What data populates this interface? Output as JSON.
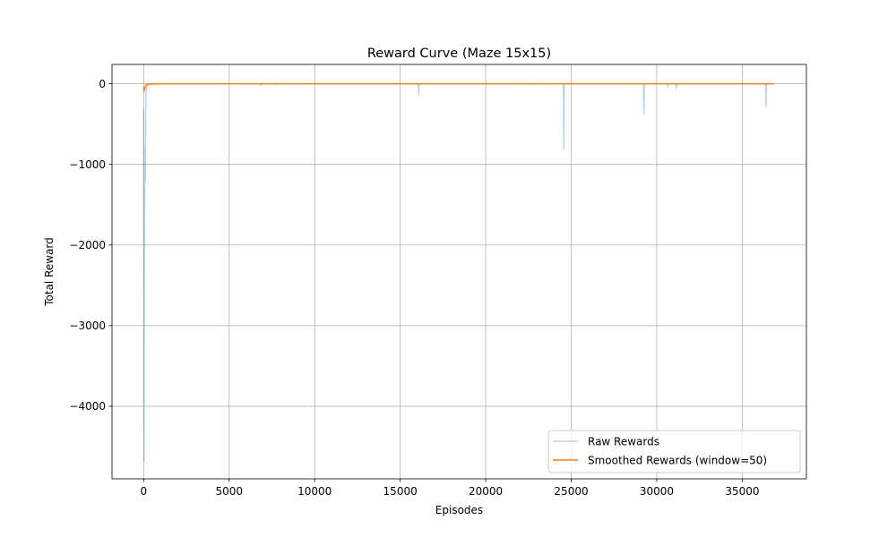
{
  "chart_data": {
    "type": "line",
    "title": "Reward Curve (Maze 15x15)",
    "xlabel": "Episodes",
    "ylabel": "Total Reward",
    "xlim": [
      -1850,
      38750
    ],
    "ylim": [
      -4900,
      240
    ],
    "xticks": [
      0,
      5000,
      10000,
      15000,
      20000,
      25000,
      30000,
      35000
    ],
    "xtick_labels": [
      "0",
      "5000",
      "10000",
      "15000",
      "20000",
      "25000",
      "30000",
      "35000"
    ],
    "yticks": [
      0,
      -1000,
      -2000,
      -3000,
      -4000
    ],
    "ytick_labels": [
      "0",
      "−1000",
      "−2000",
      "−3000",
      "−4000"
    ],
    "grid": true,
    "legend_position": "lower-right",
    "series": [
      {
        "name": "Raw Rewards",
        "color": "#1f77b4",
        "alpha": 0.3,
        "x": [
          0,
          20,
          40,
          60,
          80,
          100,
          120,
          140,
          160,
          200,
          400,
          1000,
          6820,
          6840,
          6860,
          7700,
          7720,
          7740,
          16050,
          16080,
          16110,
          22600,
          22620,
          22640,
          24540,
          24570,
          24600,
          29220,
          29250,
          29280,
          30620,
          30650,
          30680,
          31120,
          31150,
          31180,
          36360,
          36390,
          36420,
          36850
        ],
        "values": [
          -300,
          -4680,
          -2500,
          -1500,
          -800,
          -1220,
          -400,
          -150,
          -60,
          -20,
          -5,
          0,
          0,
          -20,
          0,
          0,
          -8,
          0,
          0,
          -140,
          0,
          0,
          -10,
          0,
          0,
          -810,
          0,
          0,
          -380,
          0,
          0,
          -40,
          0,
          0,
          -60,
          0,
          0,
          -280,
          0,
          0
        ]
      },
      {
        "name": "Smoothed Rewards (window=50)",
        "color": "#ff7f0e",
        "alpha": 1,
        "x": [
          0,
          30,
          60,
          100,
          150,
          250,
          400,
          1000,
          6830,
          6860,
          6890,
          36850
        ],
        "values": [
          -40,
          -90,
          -60,
          -30,
          -12,
          -5,
          -2,
          0,
          0,
          -6,
          0,
          0
        ]
      }
    ]
  }
}
